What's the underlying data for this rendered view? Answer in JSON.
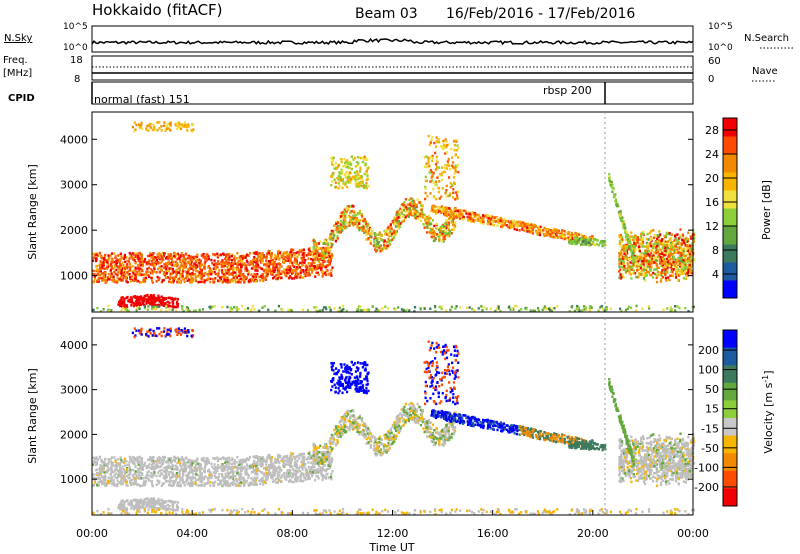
{
  "header": {
    "title": "Hokkaido (fitACF)",
    "beam": "Beam 03",
    "date_range": "16/Feb/2016 - 17/Feb/2016"
  },
  "top_strips": {
    "nsky_label": "N.Sky",
    "nsky_ticks": [
      "10^5",
      "10^0"
    ],
    "nsearch_label": "N.Search",
    "nsearch_ticks": [
      "10^5",
      "10^0"
    ],
    "freq_label": "Freq.",
    "freq_unit": "[MHz]",
    "freq_ticks": [
      "18",
      "8"
    ],
    "nave_label": "Nave",
    "nave_ticks": [
      "60",
      "0"
    ],
    "cpid_label": "CPID",
    "cpid_segments": [
      {
        "label": "normal (fast) 151",
        "start_hour": 0.0
      },
      {
        "label": "rbsp 200",
        "start_hour": 20.5
      }
    ]
  },
  "colors": {
    "power_scale": [
      "#0000ff",
      "#1e5aa0",
      "#3c7a5e",
      "#62a83c",
      "#8ccf3a",
      "#f0e040",
      "#f7b400",
      "#f28a00",
      "#ff4c00",
      "#f00000"
    ],
    "velocity_scale": [
      "#0000ff",
      "#1e5aa0",
      "#3c7a5e",
      "#62a83c",
      "#8ccf3a",
      "#c8c8c8",
      "#f7b400",
      "#f28a00",
      "#ff4c00",
      "#f00000"
    ],
    "ground_scatter": "#bebebe"
  },
  "chart_data": [
    {
      "type": "heatmap",
      "name_in_colorbar": "Power [dB]",
      "ylabel": "Slant Range [km]",
      "ylim": [
        200,
        4600
      ],
      "xlim": [
        0,
        24
      ],
      "yticks": [
        "1000",
        "2000",
        "3000",
        "4000"
      ],
      "colorbar": {
        "label": "Power [dB]",
        "ticks": [
          "4",
          "8",
          "12",
          "16",
          "20",
          "24",
          "28"
        ],
        "range": [
          0,
          30
        ]
      },
      "features": [
        {
          "hour_range": [
            0,
            9.5
          ],
          "range_km": [
            900,
            1500
          ],
          "value_db": 27
        },
        {
          "hour_range": [
            1.0,
            3.4
          ],
          "range_km": [
            350,
            650
          ],
          "value_db": 29
        },
        {
          "hour_range": [
            9.0,
            14.5
          ],
          "range_km": [
            1400,
            2700
          ],
          "value_db": 20
        },
        {
          "hour_range": [
            14.5,
            20.0
          ],
          "range_km": [
            1800,
            2300
          ],
          "value_db": 22
        },
        {
          "hour_range": [
            21.0,
            24.0
          ],
          "range_km": [
            700,
            2500
          ],
          "value_db": 24
        }
      ]
    },
    {
      "type": "heatmap",
      "ylabel": "Slant Range [km]",
      "ylim": [
        200,
        4600
      ],
      "xlim": [
        0,
        24
      ],
      "yticks": [
        "1000",
        "2000",
        "3000",
        "4000"
      ],
      "colorbar": {
        "label": "Velocity [m s^-1]",
        "ticks": [
          "200",
          "100",
          "50",
          "15",
          "-15",
          "-50",
          "-100",
          "-200"
        ]
      },
      "features": [
        {
          "hour_range": [
            0,
            9.5
          ],
          "range_km": [
            500,
            1500
          ],
          "value": "ground scatter"
        },
        {
          "hour_range": [
            9.5,
            11.0
          ],
          "range_km": [
            2900,
            3700
          ],
          "value_ms": 220
        },
        {
          "hour_range": [
            13.3,
            17.0
          ],
          "range_km": [
            1900,
            2700
          ],
          "value_ms": 150
        },
        {
          "hour_range": [
            21.0,
            24.0
          ],
          "range_km": [
            700,
            2300
          ],
          "value": "ground scatter"
        }
      ]
    }
  ],
  "x_axis": {
    "label": "Time UT",
    "ticks": [
      "00:00",
      "04:00",
      "08:00",
      "12:00",
      "16:00",
      "20:00",
      "00:00"
    ]
  }
}
